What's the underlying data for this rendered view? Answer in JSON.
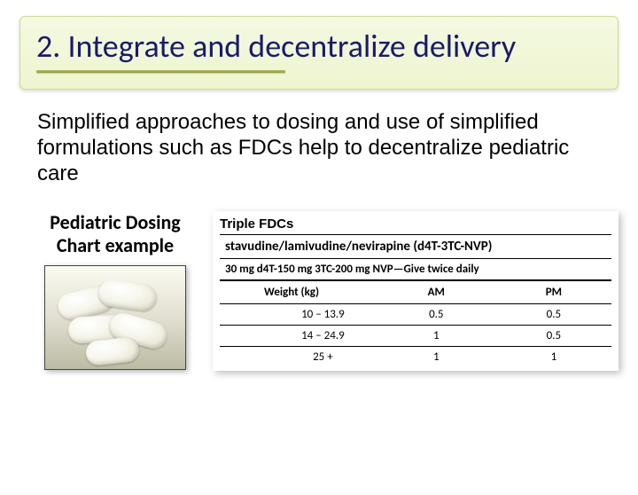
{
  "title": {
    "text": "2. Integrate and decentralize delivery",
    "text_color": "#1a1a6a",
    "fontsize": 36,
    "bg_gradient_top": "#f4f9e0",
    "bg_gradient_bottom": "#eef5d0",
    "border_color": "#cddc8f",
    "underline_color": "#8e9a3c"
  },
  "body": {
    "text": "Simplified approaches to dosing and use of simplified formulations such as FDCs help to decentralize pediatric care",
    "fontsize": 24,
    "color": "#000000"
  },
  "left": {
    "label_line1": "Pediatric Dosing",
    "label_line2": "Chart example",
    "label_fontsize": 22,
    "pill_image": {
      "width": 160,
      "height": 118,
      "bg_top": "#fbfbf1",
      "bg_bottom": "#bcbba4",
      "pill_fill": "#f7f7ee"
    }
  },
  "fdc": {
    "heading": "Triple FDCs",
    "drug": "stavudine/lamivudine/nevirapine (d4T-3TC-NVP)",
    "dose_line": "30 mg d4T-150 mg 3TC-200 mg NVP—Give twice daily",
    "table": {
      "columns": [
        "Weight (kg)",
        "AM",
        "PM"
      ],
      "rows": [
        [
          "10 – 13.9",
          "0.5",
          "0.5"
        ],
        [
          "14 – 24.9",
          "1",
          "0.5"
        ],
        [
          "25 +",
          "1",
          "1"
        ]
      ],
      "header_fontsize": 13,
      "cell_fontsize": 13,
      "border_color": "#000000"
    }
  }
}
